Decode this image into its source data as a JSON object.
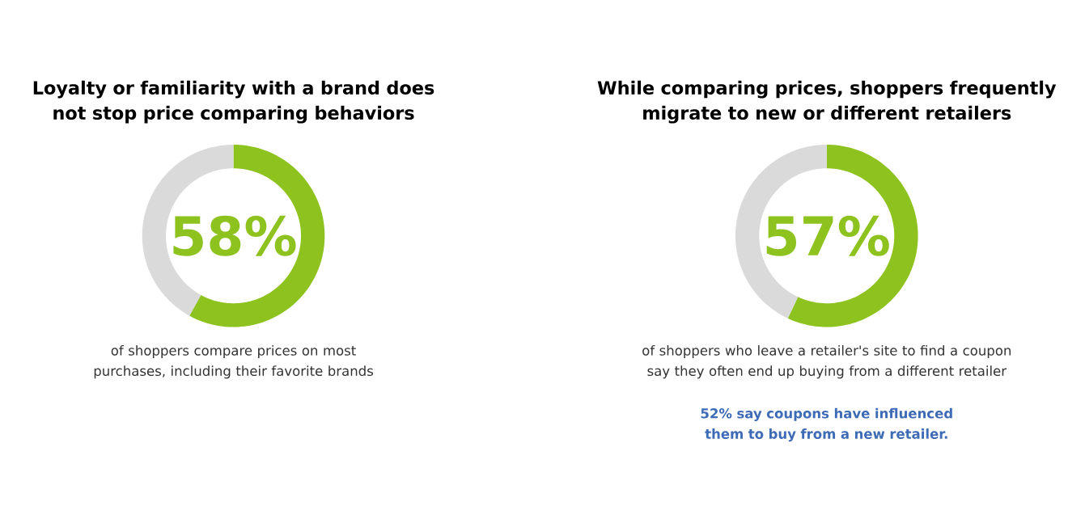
{
  "chart_data": [
    {
      "type": "donut",
      "title": "Loyalty or familiarity with a brand does not stop price comparing behaviors",
      "categories": [
        null,
        null
      ],
      "values": [
        58,
        42
      ],
      "colors": [
        "#8dc21f",
        "#dadada"
      ],
      "value_labels": [
        "58%",
        null
      ],
      "annotations": [
        "of shoppers compare prices on most purchases, including their favorite brands"
      ]
    },
    {
      "type": "donut",
      "title": "While comparing prices, shoppers frequently migrate to new or different retailers",
      "categories": [
        null,
        null
      ],
      "values": [
        57,
        43
      ],
      "colors": [
        "#8dc21f",
        "#dadada"
      ],
      "value_labels": [
        "57%",
        null
      ],
      "annotations": [
        "of shoppers who leave a retailer's site to find a coupon say they often end up buying from a different retailer",
        "52% say coupons have influenced them to buy from a new retailer."
      ]
    }
  ]
}
